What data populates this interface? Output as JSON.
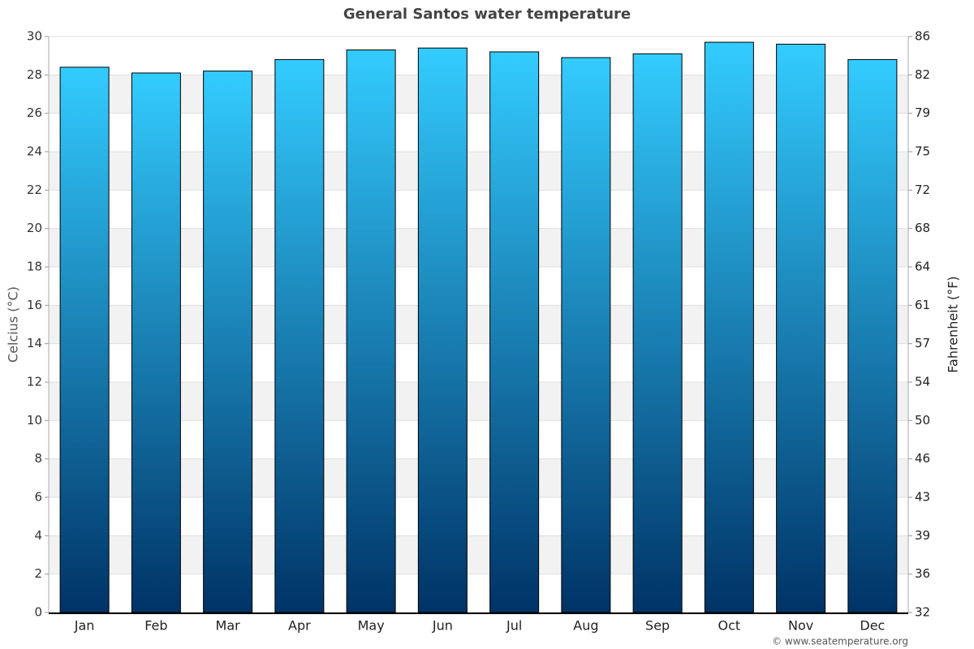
{
  "chart_data": {
    "type": "bar",
    "title": "General Santos water temperature",
    "categories": [
      "Jan",
      "Feb",
      "Mar",
      "Apr",
      "May",
      "Jun",
      "Jul",
      "Aug",
      "Sep",
      "Oct",
      "Nov",
      "Dec"
    ],
    "values": [
      28.4,
      28.1,
      28.2,
      28.8,
      29.3,
      29.4,
      29.2,
      28.9,
      29.1,
      29.7,
      29.6,
      28.8
    ],
    "gradient": [
      "#33ccff",
      "#003366"
    ],
    "ylabel": "Celcius (°C)",
    "y2label": "Fahrenheit (°F)",
    "ylim": [
      0,
      30
    ],
    "yticks": [
      0,
      2,
      4,
      6,
      8,
      10,
      12,
      14,
      16,
      18,
      20,
      22,
      24,
      26,
      28,
      30
    ],
    "y2lim": [
      32,
      86
    ],
    "y2ticks": [
      32,
      {
        "value": 35.6,
        "label": "36"
      },
      {
        "value": 39.2,
        "label": "39"
      },
      {
        "value": 42.8,
        "label": "43"
      },
      {
        "value": 46.4,
        "label": "46"
      },
      50,
      {
        "value": 53.6,
        "label": "54"
      },
      {
        "value": 57.2,
        "label": "57"
      },
      {
        "value": 60.8,
        "label": "61"
      },
      {
        "value": 64.4,
        "label": "64"
      },
      68,
      {
        "value": 71.6,
        "label": "72"
      },
      {
        "value": 75.2,
        "label": "75"
      },
      {
        "value": 78.8,
        "label": "79"
      },
      {
        "value": 82.4,
        "label": "82"
      },
      86
    ],
    "grid": true,
    "credit": "© www.seatemperature.org"
  }
}
